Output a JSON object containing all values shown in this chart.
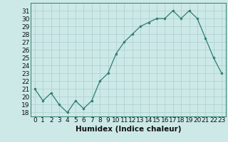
{
  "x": [
    0,
    1,
    2,
    3,
    4,
    5,
    6,
    7,
    8,
    9,
    10,
    11,
    12,
    13,
    14,
    15,
    16,
    17,
    18,
    19,
    20,
    21,
    22,
    23
  ],
  "y": [
    21,
    19.5,
    20.5,
    19,
    18,
    19.5,
    18.5,
    19.5,
    22,
    23,
    25.5,
    27,
    28,
    29,
    29.5,
    30,
    30,
    31,
    30,
    31,
    30,
    27.5,
    25,
    23
  ],
  "line_color": "#2e7d6e",
  "marker_color": "#2e7d6e",
  "bg_color": "#cce9e7",
  "grid_color": "#aacfcd",
  "xlabel": "Humidex (Indice chaleur)",
  "xlim": [
    -0.5,
    23.5
  ],
  "ylim": [
    17.5,
    32
  ],
  "yticks": [
    18,
    19,
    20,
    21,
    22,
    23,
    24,
    25,
    26,
    27,
    28,
    29,
    30,
    31
  ],
  "xticks": [
    0,
    1,
    2,
    3,
    4,
    5,
    6,
    7,
    8,
    9,
    10,
    11,
    12,
    13,
    14,
    15,
    16,
    17,
    18,
    19,
    20,
    21,
    22,
    23
  ],
  "xlabel_fontsize": 7.5,
  "tick_fontsize": 6.5
}
